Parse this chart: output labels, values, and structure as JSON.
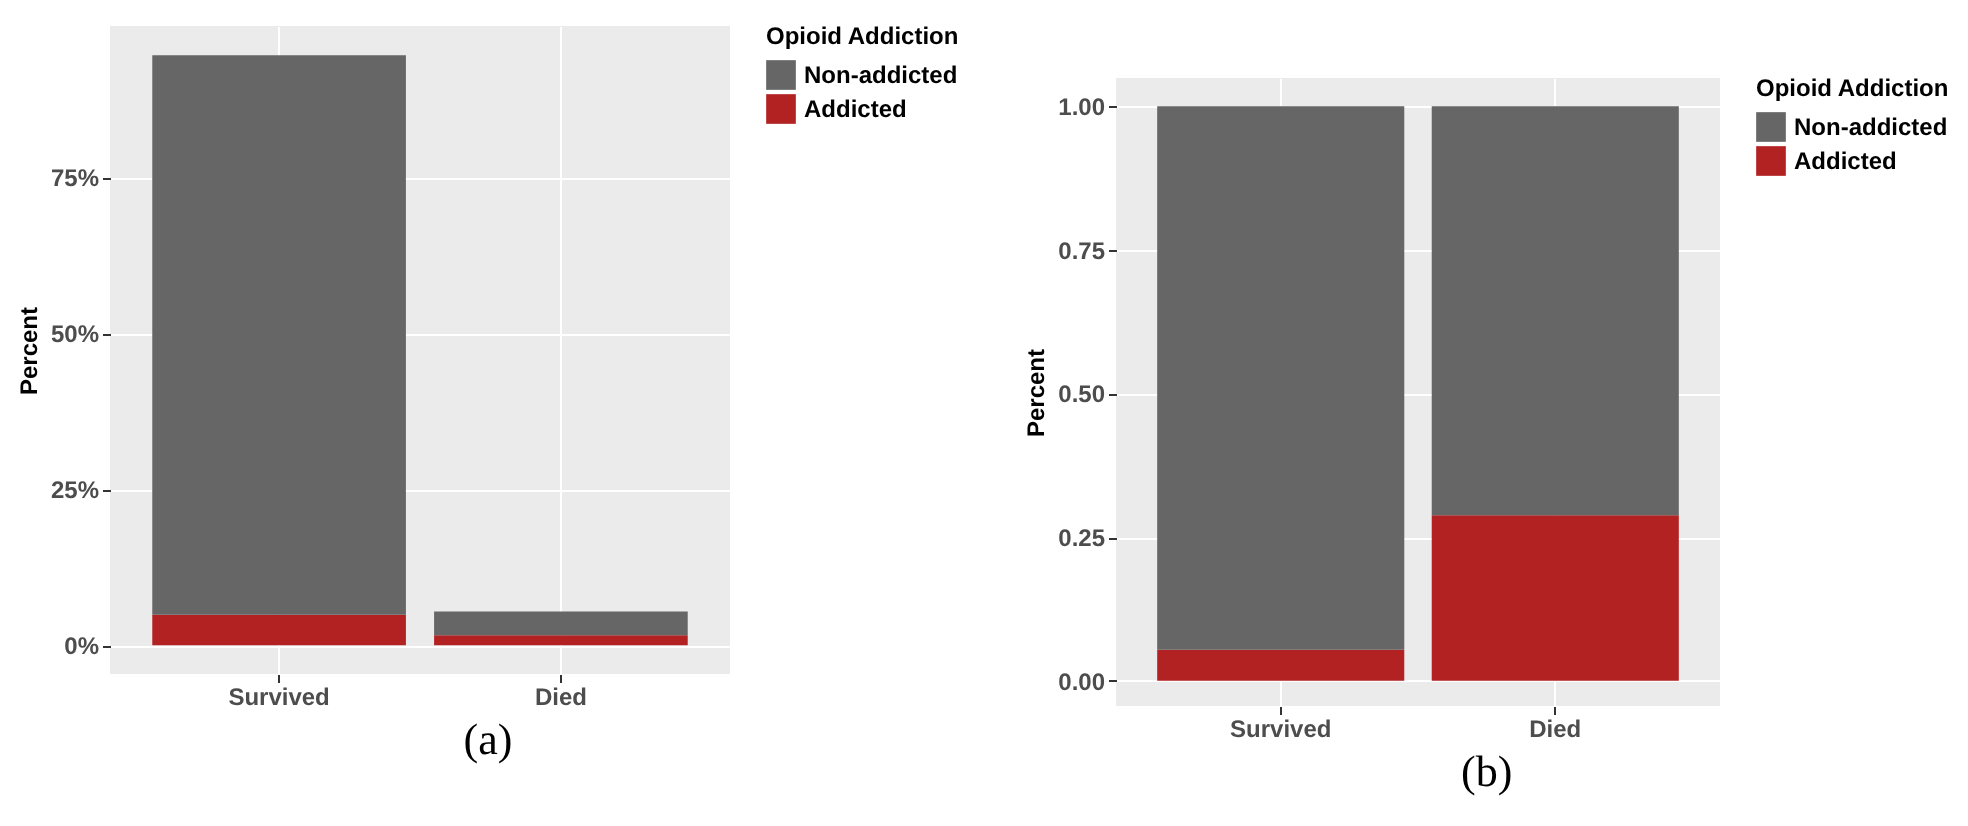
{
  "chart_data": [
    {
      "type": "bar",
      "ylabel": "Percent",
      "legend_title": "Opioid Addiction",
      "categories": [
        "Survived",
        "Died"
      ],
      "stacked": true,
      "series": [
        {
          "name": "Addicted",
          "color": "#b22222",
          "values": [
            4.9,
            1.6
          ]
        },
        {
          "name": "Non-addicted",
          "color": "#666666",
          "values": [
            89.6,
            3.8
          ]
        }
      ],
      "ylim": [
        -4.6,
        99.2
      ],
      "yticks": [
        {
          "value": 0,
          "label": "0%"
        },
        {
          "value": 25,
          "label": "25%"
        },
        {
          "value": 50,
          "label": "50%"
        },
        {
          "value": 75,
          "label": "75%"
        }
      ],
      "grid": true,
      "legend": "right",
      "annotations": [
        "(a)"
      ]
    },
    {
      "type": "bar",
      "ylabel": "Percent",
      "legend_title": "Opioid Addiction",
      "categories": [
        "Survived",
        "Died"
      ],
      "stacked": true,
      "series": [
        {
          "name": "Addicted",
          "color": "#b22222",
          "values": [
            0.054,
            0.288
          ]
        },
        {
          "name": "Non-addicted",
          "color": "#666666",
          "values": [
            0.946,
            0.712
          ]
        }
      ],
      "ylim": [
        -0.044,
        1.049
      ],
      "yticks": [
        {
          "value": 0,
          "label": "0.00"
        },
        {
          "value": 0.25,
          "label": "0.25"
        },
        {
          "value": 0.5,
          "label": "0.50"
        },
        {
          "value": 0.75,
          "label": "0.75"
        },
        {
          "value": 1,
          "label": "1.00"
        }
      ],
      "grid": true,
      "legend": "right",
      "annotations": [
        "(b)"
      ]
    }
  ]
}
